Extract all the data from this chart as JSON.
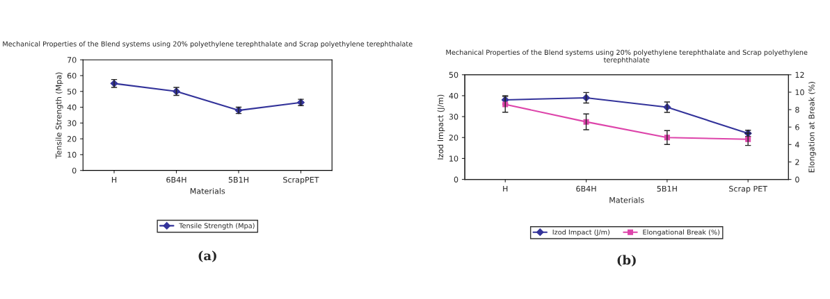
{
  "chart_data": [
    {
      "type": "line",
      "title": "Mechanical Properties of the Blend systems using 20% polyethylene terephthalate and Scrap polyethylene terephthalate",
      "xlabel": "Materials",
      "ylabel": "Tensile Strength (Mpa)",
      "categories": [
        "H",
        "6B4H",
        "5B1H",
        "ScrapPET"
      ],
      "series": [
        {
          "name": "Tensile Strength (Mpa)",
          "color": "#33339a",
          "values": [
            55,
            50,
            38,
            43
          ],
          "errors": [
            2.5,
            2.5,
            2,
            2
          ]
        }
      ],
      "ylim": [
        0,
        70
      ],
      "yticks": [
        0,
        10,
        20,
        30,
        40,
        50,
        60,
        70
      ],
      "marker": "diamond",
      "legend": "bottom",
      "grid": false,
      "annotations": [
        "(a)"
      ]
    },
    {
      "type": "line",
      "title": "Mechanical Properties of the Blend systems using 20% polyethylene terephthalate and Scrap polyethylene terephthalate",
      "xlabel": "Materials",
      "ylabel": "Izod Impact (J/m)",
      "y2label": "Elongation at Break (%)",
      "categories": [
        "H",
        "6B4H",
        "5B1H",
        "Scrap PET"
      ],
      "series": [
        {
          "name": "Izod Impact (J/m)",
          "color": "#33339a",
          "values": [
            38,
            39,
            34.5,
            22
          ],
          "errors": [
            2,
            2.5,
            2.5,
            1.5
          ],
          "marker": "diamond"
        },
        {
          "name": "Elongational Break (%)",
          "color": "#dd44aa",
          "values": [
            8.6,
            6.6,
            4.8,
            4.6
          ],
          "errors": [
            0.9,
            0.9,
            0.8,
            0.7
          ],
          "axis": "y2",
          "marker": "square"
        }
      ],
      "ylim": [
        0,
        50
      ],
      "yticks": [
        0,
        10,
        20,
        30,
        40,
        50
      ],
      "y2lim": [
        0,
        12
      ],
      "y2ticks": [
        0,
        2,
        4,
        6,
        8,
        10,
        12
      ],
      "legend": "bottom",
      "grid": false,
      "annotations": [
        "(b)"
      ]
    }
  ]
}
